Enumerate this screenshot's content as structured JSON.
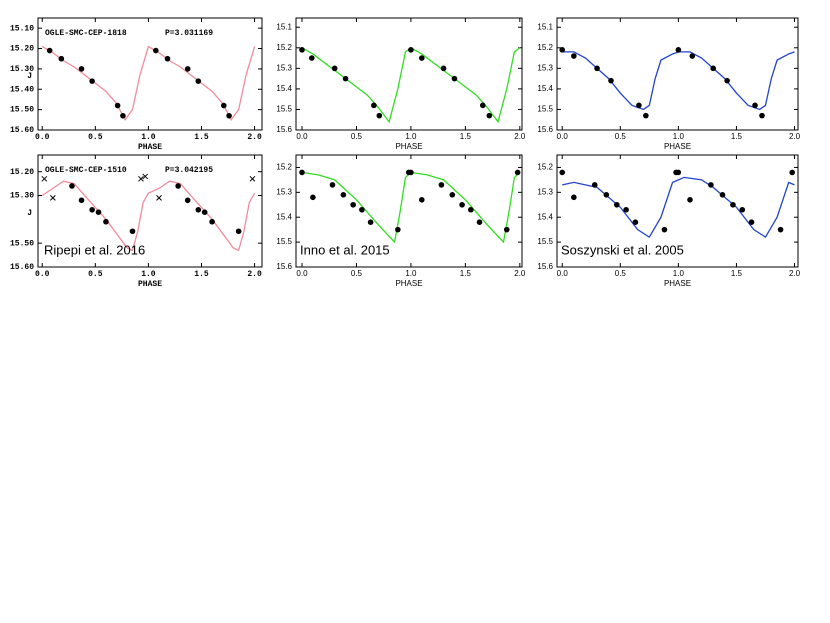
{
  "chart_data": [
    {
      "type": "line",
      "style": "mono",
      "annotations": [
        "OGLE-SMC-CEP-1818",
        "P=3.031169"
      ],
      "xlabel": "PHASE",
      "ylabel": "J",
      "xlim": [
        -0.04,
        2.07
      ],
      "ylim": [
        15.6,
        15.05
      ],
      "xticks": [
        {
          "value": 0,
          "label": "0.0"
        },
        {
          "value": 0.5,
          "label": "0.5"
        },
        {
          "value": 1,
          "label": "1.0"
        },
        {
          "value": 1.5,
          "label": "1.5"
        },
        {
          "value": 2,
          "label": "2.0"
        }
      ],
      "yticks": [
        {
          "value": 15.1,
          "label": "15.10"
        },
        {
          "value": 15.2,
          "label": "15.20"
        },
        {
          "value": 15.3,
          "label": "15.30"
        },
        {
          "value": 15.4,
          "label": "15.40"
        },
        {
          "value": 15.5,
          "label": "15.50"
        },
        {
          "value": 15.6,
          "label": "15.60"
        }
      ],
      "series": [
        {
          "kind": "line",
          "color": "#f08c9a",
          "x": [
            0,
            0.1,
            0.2,
            0.3,
            0.4,
            0.5,
            0.6,
            0.7,
            0.78,
            0.85,
            0.92,
            1.0,
            1.1,
            1.2,
            1.3,
            1.4,
            1.5,
            1.6,
            1.7,
            1.78,
            1.85,
            1.92,
            2.0
          ],
          "values": [
            15.19,
            15.22,
            15.26,
            15.29,
            15.33,
            15.37,
            15.41,
            15.47,
            15.55,
            15.5,
            15.33,
            15.19,
            15.22,
            15.26,
            15.29,
            15.33,
            15.37,
            15.41,
            15.47,
            15.55,
            15.5,
            15.33,
            15.19
          ]
        },
        {
          "kind": "dot",
          "color": "#000000",
          "x": [
            0.07,
            0.18,
            0.37,
            0.47,
            0.71,
            0.76,
            1.07,
            1.18,
            1.37,
            1.47,
            1.71,
            1.76
          ],
          "values": [
            15.21,
            15.25,
            15.3,
            15.36,
            15.48,
            15.53,
            15.21,
            15.25,
            15.3,
            15.36,
            15.48,
            15.53
          ]
        }
      ]
    },
    {
      "type": "line",
      "style": "sans",
      "annotations": [],
      "xlabel": "PHASE",
      "xlim": [
        -0.055,
        2.02
      ],
      "ylim": [
        15.6,
        15.055
      ],
      "xticks": [
        {
          "value": 0,
          "label": "0.0"
        },
        {
          "value": 0.5,
          "label": "0.5"
        },
        {
          "value": 1,
          "label": "1.0"
        },
        {
          "value": 1.5,
          "label": "1.5"
        },
        {
          "value": 2,
          "label": "2.0"
        }
      ],
      "yticks": [
        15.1,
        15.2,
        15.3,
        15.4,
        15.5,
        15.6
      ],
      "series": [
        {
          "kind": "line",
          "color": "#33dd22",
          "x": [
            0,
            0.1,
            0.2,
            0.3,
            0.4,
            0.5,
            0.6,
            0.7,
            0.8,
            0.88,
            0.95,
            1.0,
            1.1,
            1.2,
            1.3,
            1.4,
            1.5,
            1.6,
            1.7,
            1.8,
            1.88,
            1.95,
            2.0
          ],
          "values": [
            15.2,
            15.23,
            15.27,
            15.31,
            15.35,
            15.39,
            15.43,
            15.49,
            15.56,
            15.4,
            15.22,
            15.2,
            15.23,
            15.27,
            15.31,
            15.35,
            15.39,
            15.43,
            15.49,
            15.56,
            15.4,
            15.22,
            15.2
          ]
        },
        {
          "kind": "dot",
          "color": "#000000",
          "x": [
            0,
            0.09,
            0.3,
            0.4,
            0.66,
            0.71,
            1.0,
            1.1,
            1.3,
            1.4,
            1.66,
            1.72
          ],
          "values": [
            15.21,
            15.25,
            15.3,
            15.35,
            15.48,
            15.53,
            15.21,
            15.25,
            15.3,
            15.35,
            15.48,
            15.53
          ]
        }
      ]
    },
    {
      "type": "line",
      "style": "sans",
      "annotations": [],
      "xlabel": "PHASE",
      "xlim": [
        -0.045,
        2.03
      ],
      "ylim": [
        15.6,
        15.055
      ],
      "xticks": [
        {
          "value": 0,
          "label": "0.0"
        },
        {
          "value": 0.5,
          "label": "0.5"
        },
        {
          "value": 1,
          "label": "1.0"
        },
        {
          "value": 1.5,
          "label": "1.5"
        },
        {
          "value": 2,
          "label": "2.0"
        }
      ],
      "yticks": [
        15.1,
        15.2,
        15.3,
        15.4,
        15.5,
        15.6
      ],
      "series": [
        {
          "kind": "line",
          "color": "#2244cc",
          "x": [
            0,
            0.1,
            0.2,
            0.3,
            0.4,
            0.5,
            0.6,
            0.7,
            0.75,
            0.8,
            0.85,
            0.95,
            1.0,
            1.1,
            1.2,
            1.3,
            1.4,
            1.5,
            1.6,
            1.7,
            1.75,
            1.8,
            1.85,
            1.95,
            2.0
          ],
          "values": [
            15.22,
            15.22,
            15.25,
            15.3,
            15.35,
            15.42,
            15.48,
            15.5,
            15.48,
            15.35,
            15.26,
            15.23,
            15.22,
            15.22,
            15.25,
            15.3,
            15.35,
            15.42,
            15.48,
            15.5,
            15.48,
            15.35,
            15.26,
            15.23,
            15.22
          ]
        },
        {
          "kind": "dot",
          "color": "#000000",
          "x": [
            0,
            0.1,
            0.3,
            0.42,
            0.66,
            0.72,
            1.0,
            1.12,
            1.3,
            1.42,
            1.66,
            1.72
          ],
          "values": [
            15.21,
            15.24,
            15.3,
            15.36,
            15.48,
            15.53,
            15.21,
            15.24,
            15.3,
            15.36,
            15.48,
            15.53
          ]
        }
      ]
    },
    {
      "type": "line",
      "style": "mono",
      "annotations": [
        "OGLE-SMC-CEP-1510",
        "P=3.042195",
        "Ripepi et al. 2016"
      ],
      "xlabel": "PHASE",
      "ylabel": "J",
      "xlim": [
        -0.04,
        2.07
      ],
      "ylim": [
        15.6,
        15.13
      ],
      "xticks": [
        {
          "value": 0,
          "label": "0.0"
        },
        {
          "value": 0.5,
          "label": "0.5"
        },
        {
          "value": 1,
          "label": "1.0"
        },
        {
          "value": 1.5,
          "label": "1.5"
        },
        {
          "value": 2,
          "label": "2.0"
        }
      ],
      "yticks": [
        {
          "value": 15.2,
          "label": "15.20"
        },
        {
          "value": 15.3,
          "label": "15.30"
        },
        {
          "value": 15.5,
          "label": "15.50"
        },
        {
          "value": 15.6,
          "label": "15.60"
        }
      ],
      "series": [
        {
          "kind": "line",
          "color": "#f08c9a",
          "x": [
            0,
            0.1,
            0.2,
            0.3,
            0.4,
            0.5,
            0.6,
            0.7,
            0.8,
            0.85,
            0.9,
            0.95,
            1.0,
            1.1,
            1.2,
            1.3,
            1.4,
            1.5,
            1.6,
            1.7,
            1.8,
            1.85,
            1.9,
            1.95,
            2.0
          ],
          "values": [
            15.3,
            15.27,
            15.24,
            15.25,
            15.3,
            15.35,
            15.4,
            15.46,
            15.52,
            15.53,
            15.45,
            15.33,
            15.29,
            15.27,
            15.24,
            15.25,
            15.3,
            15.35,
            15.4,
            15.46,
            15.52,
            15.53,
            15.45,
            15.33,
            15.29
          ]
        },
        {
          "kind": "dot",
          "color": "#000000",
          "x": [
            0.28,
            0.37,
            0.47,
            0.53,
            0.6,
            0.85,
            1.28,
            1.37,
            1.47,
            1.53,
            1.6,
            1.85
          ],
          "values": [
            15.26,
            15.32,
            15.36,
            15.37,
            15.41,
            15.45,
            15.26,
            15.32,
            15.36,
            15.37,
            15.41,
            15.45
          ]
        },
        {
          "kind": "cross",
          "color": "#000000",
          "x": [
            0.02,
            0.1,
            0.93,
            0.97,
            1.1,
            1.98
          ],
          "values": [
            15.23,
            15.31,
            15.23,
            15.22,
            15.31,
            15.23
          ]
        }
      ]
    },
    {
      "type": "line",
      "style": "sans",
      "annotations": [
        "Inno et al. 2015"
      ],
      "xlabel": "PHASE",
      "xlim": [
        -0.055,
        2.02
      ],
      "ylim": [
        15.6,
        15.15
      ],
      "xticks": [
        {
          "value": 0,
          "label": "0.0"
        },
        {
          "value": 0.5,
          "label": "0.5"
        },
        {
          "value": 1,
          "label": "1.0"
        },
        {
          "value": 1.5,
          "label": "1.5"
        },
        {
          "value": 2,
          "label": "2.0"
        }
      ],
      "yticks": [
        15.2,
        15.3,
        15.4,
        15.5,
        15.6
      ],
      "series": [
        {
          "kind": "line",
          "color": "#33dd22",
          "x": [
            0,
            0.15,
            0.3,
            0.5,
            0.7,
            0.85,
            0.9,
            0.95,
            1.0,
            1.15,
            1.3,
            1.5,
            1.7,
            1.85,
            1.9,
            1.95,
            2.0
          ],
          "values": [
            15.22,
            15.23,
            15.25,
            15.33,
            15.43,
            15.5,
            15.38,
            15.24,
            15.22,
            15.23,
            15.25,
            15.33,
            15.43,
            15.5,
            15.38,
            15.24,
            15.22
          ]
        },
        {
          "kind": "dot",
          "color": "#000000",
          "x": [
            0,
            0.1,
            0.28,
            0.38,
            0.47,
            0.55,
            0.63,
            0.88,
            0.98,
            1.0,
            1.1,
            1.28,
            1.38,
            1.47,
            1.55,
            1.63,
            1.88,
            1.98
          ],
          "values": [
            15.22,
            15.32,
            15.27,
            15.31,
            15.35,
            15.37,
            15.42,
            15.45,
            15.22,
            15.22,
            15.33,
            15.27,
            15.31,
            15.35,
            15.37,
            15.42,
            15.45,
            15.22
          ]
        }
      ]
    },
    {
      "type": "line",
      "style": "sans",
      "annotations": [
        "Soszynski et al. 2005"
      ],
      "xlabel": "PHASE",
      "xlim": [
        -0.045,
        2.03
      ],
      "ylim": [
        15.6,
        15.15
      ],
      "xticks": [
        {
          "value": 0,
          "label": "0.0"
        },
        {
          "value": 0.5,
          "label": "0.5"
        },
        {
          "value": 1,
          "label": "1.0"
        },
        {
          "value": 1.5,
          "label": "1.5"
        },
        {
          "value": 2,
          "label": "2.0"
        }
      ],
      "yticks": [
        15.2,
        15.3,
        15.4,
        15.5,
        15.6
      ],
      "series": [
        {
          "kind": "line",
          "color": "#2244cc",
          "x": [
            0,
            0.1,
            0.3,
            0.5,
            0.65,
            0.75,
            0.85,
            0.95,
            1.05,
            1.2,
            1.3,
            1.5,
            1.65,
            1.75,
            1.85,
            1.95,
            2.0
          ],
          "values": [
            15.27,
            15.26,
            15.28,
            15.36,
            15.45,
            15.48,
            15.4,
            15.26,
            15.24,
            15.25,
            15.28,
            15.36,
            15.45,
            15.48,
            15.4,
            15.26,
            15.27
          ]
        },
        {
          "kind": "dot",
          "color": "#000000",
          "x": [
            0,
            0.1,
            0.28,
            0.38,
            0.47,
            0.55,
            0.63,
            0.88,
            0.98,
            1.0,
            1.1,
            1.28,
            1.38,
            1.47,
            1.55,
            1.63,
            1.88,
            1.98
          ],
          "values": [
            15.22,
            15.32,
            15.27,
            15.31,
            15.35,
            15.37,
            15.42,
            15.45,
            15.22,
            15.22,
            15.33,
            15.27,
            15.31,
            15.35,
            15.37,
            15.42,
            15.45,
            15.22
          ]
        }
      ]
    }
  ]
}
